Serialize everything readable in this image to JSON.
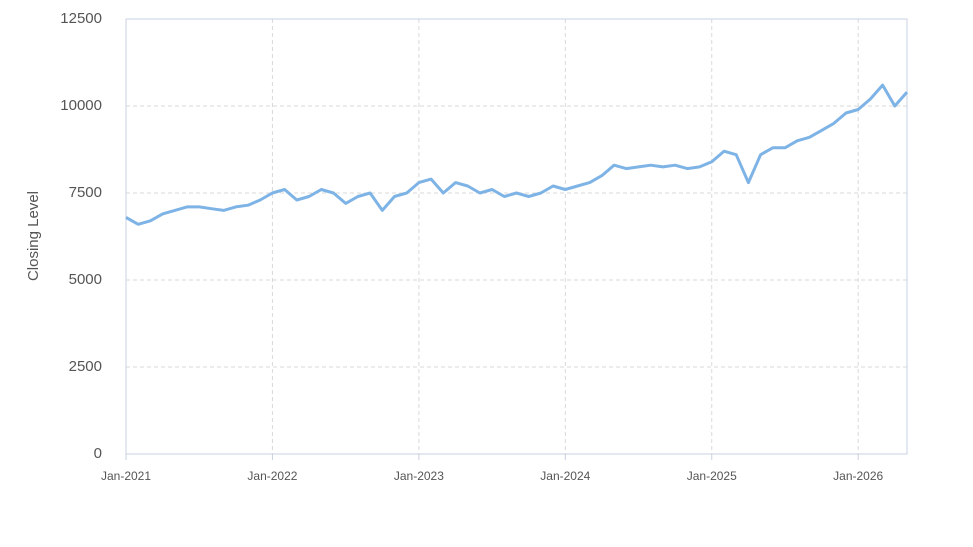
{
  "chart_data": {
    "type": "line",
    "y_label": "Closing Level",
    "x": [
      "2021-01",
      "2021-02",
      "2021-03",
      "2021-04",
      "2021-05",
      "2021-06",
      "2021-07",
      "2021-08",
      "2021-09",
      "2021-10",
      "2021-11",
      "2021-12",
      "2022-01",
      "2022-02",
      "2022-03",
      "2022-04",
      "2022-05",
      "2022-06",
      "2022-07",
      "2022-08",
      "2022-09",
      "2022-10",
      "2022-11",
      "2022-12",
      "2023-01",
      "2023-02",
      "2023-03",
      "2023-04",
      "2023-05",
      "2023-06",
      "2023-07",
      "2023-08",
      "2023-09",
      "2023-10",
      "2023-11",
      "2023-12",
      "2024-01",
      "2024-02",
      "2024-03",
      "2024-04",
      "2024-05",
      "2024-06",
      "2024-07",
      "2024-08",
      "2024-09",
      "2024-10",
      "2024-11",
      "2024-12",
      "2025-01",
      "2025-02",
      "2025-03",
      "2025-04",
      "2025-05",
      "2025-06",
      "2025-07",
      "2025-08",
      "2025-09",
      "2025-10",
      "2025-11",
      "2025-12",
      "2026-01",
      "2026-02",
      "2026-03",
      "2026-04",
      "2026-05"
    ],
    "series": [
      {
        "name": "Closing Level",
        "color": "#7eb3e6",
        "values": [
          6800,
          6600,
          6700,
          6900,
          7000,
          7100,
          7100,
          7050,
          7000,
          7100,
          7150,
          7300,
          7500,
          7600,
          7300,
          7400,
          7600,
          7500,
          7200,
          7400,
          7500,
          7000,
          7400,
          7500,
          7800,
          7900,
          7500,
          7800,
          7700,
          7500,
          7600,
          7400,
          7500,
          7400,
          7500,
          7700,
          7600,
          7700,
          7800,
          8000,
          8300,
          8200,
          8250,
          8300,
          8250,
          8300,
          8200,
          8250,
          8400,
          8700,
          8600,
          7800,
          8600,
          8800,
          8800,
          9000,
          9100,
          9300,
          9500,
          9800,
          9900,
          10200,
          10600,
          10000,
          10400
        ]
      }
    ],
    "xlim": [
      "2021-01",
      "2026-05"
    ],
    "xticks": [
      {
        "value": "2021-01",
        "label": "Jan-2021"
      },
      {
        "value": "2022-01",
        "label": "Jan-2022"
      },
      {
        "value": "2023-01",
        "label": "Jan-2023"
      },
      {
        "value": "2024-01",
        "label": "Jan-2024"
      },
      {
        "value": "2025-01",
        "label": "Jan-2025"
      },
      {
        "value": "2026-01",
        "label": "Jan-2026"
      }
    ],
    "ylim": [
      0,
      12500
    ],
    "yticks": [
      0,
      2500,
      5000,
      7500,
      10000,
      12500
    ],
    "grid": true
  }
}
